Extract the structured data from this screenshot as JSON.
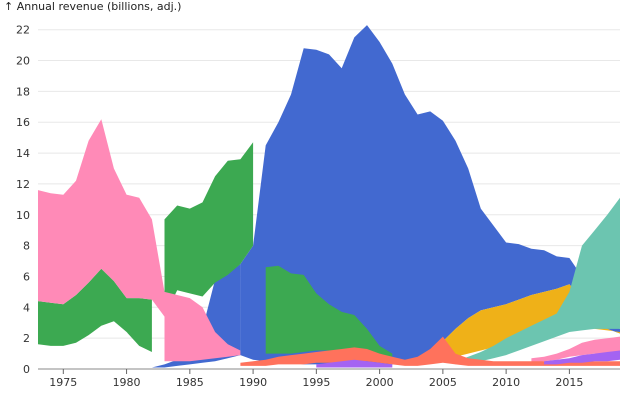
{
  "chart_data": {
    "type": "area",
    "title": "",
    "xlabel": "",
    "ylabel": "↑ Annual revenue (billions, adj.)",
    "xlim": [
      1973,
      2019
    ],
    "ylim": [
      0,
      22.5
    ],
    "grid": "horizontal",
    "x_ticks": [
      1975,
      1980,
      1985,
      1990,
      1995,
      2000,
      2005,
      2010,
      2015
    ],
    "y_ticks": [
      0,
      2,
      4,
      6,
      8,
      10,
      12,
      14,
      16,
      18,
      20,
      22
    ],
    "series": [
      {
        "color": "#4269d0",
        "segments": [
          {
            "x": [
              1982,
              1983,
              1984,
              1985,
              1986,
              1987,
              1988,
              1989
            ],
            "y0": [
              0.1,
              0.1,
              0.2,
              0.3,
              0.4,
              0.5,
              0.7,
              0.9
            ],
            "y1": [
              0.1,
              0.3,
              0.6,
              1.5,
              2.6,
              5.8,
              6.2,
              6.8
            ]
          },
          {
            "x": [
              1989,
              1990,
              1991,
              1992,
              1993,
              1994,
              1995,
              1996,
              1997,
              1998,
              1999,
              2000,
              2001,
              2002,
              2003,
              2004,
              2005,
              2006,
              2007,
              2008,
              2009,
              2010,
              2011,
              2012,
              2013,
              2014,
              2015,
              2016,
              2017,
              2018,
              2019
            ],
            "y0": [
              0.9,
              0.6,
              0.5,
              0.4,
              0.4,
              0.3,
              0.3,
              0.3,
              0.3,
              0.3,
              0.3,
              0.3,
              0.3,
              0.3,
              0.3,
              1.0,
              1.8,
              2.6,
              3.3,
              3.8,
              4.0,
              4.2,
              4.5,
              4.8,
              5.0,
              5.2,
              5.5,
              4.5,
              3.4,
              2.6,
              2.3
            ],
            "y1": [
              6.8,
              8.0,
              14.5,
              16.0,
              17.8,
              20.8,
              20.7,
              20.4,
              19.5,
              21.5,
              22.3,
              21.2,
              19.8,
              17.8,
              16.5,
              16.7,
              16.1,
              14.8,
              13.0,
              10.4,
              9.3,
              8.2,
              8.1,
              7.8,
              7.7,
              7.3,
              7.2,
              6.0,
              4.2,
              3.0,
              2.6
            ]
          }
        ]
      },
      {
        "color": "#efb118",
        "segments": [
          {
            "x": [
              2003,
              2004,
              2005,
              2006,
              2007,
              2008,
              2009,
              2010,
              2011,
              2012,
              2013,
              2014,
              2015,
              2016,
              2017,
              2018,
              2019
            ],
            "y0": [
              0.3,
              0.5,
              0.6,
              0.8,
              1.0,
              1.2,
              1.4,
              1.6,
              1.8,
              2.0,
              2.3,
              2.6,
              3.0,
              2.8,
              2.6,
              2.5,
              2.4
            ],
            "y1": [
              0.4,
              1.0,
              1.8,
              2.6,
              3.3,
              3.8,
              4.0,
              4.2,
              4.5,
              4.8,
              5.0,
              5.2,
              5.5,
              4.5,
              3.4,
              2.6,
              2.3
            ]
          }
        ]
      },
      {
        "color": "#3ca951",
        "segments": [
          {
            "x": [
              1973,
              1974,
              1975,
              1976,
              1977,
              1978,
              1979,
              1980,
              1981,
              1982
            ],
            "y0": [
              1.6,
              1.5,
              1.5,
              1.7,
              2.2,
              2.8,
              3.1,
              2.4,
              1.5,
              1.1
            ],
            "y1": [
              4.4,
              4.3,
              4.2,
              4.8,
              5.6,
              6.5,
              5.7,
              4.6,
              4.6,
              4.5
            ]
          },
          {
            "x": [
              1983,
              1984,
              1985,
              1986,
              1987,
              1988,
              1989,
              1990
            ],
            "y0": [
              3.4,
              5.1,
              4.9,
              4.7,
              5.6,
              6.1,
              6.8,
              8.0
            ],
            "y1": [
              9.7,
              10.6,
              10.4,
              10.8,
              12.5,
              13.5,
              13.6,
              14.7
            ]
          },
          {
            "x": [
              1991,
              1992,
              1993,
              1994,
              1995,
              1996,
              1997,
              1998,
              1999,
              2000,
              2001
            ],
            "y0": [
              1.0,
              1.0,
              1.0,
              1.1,
              1.2,
              1.2,
              1.2,
              1.0,
              0.8,
              0.6,
              0.4
            ],
            "y1": [
              6.6,
              6.7,
              6.2,
              6.1,
              4.9,
              4.2,
              3.7,
              3.5,
              2.6,
              1.5,
              1.0
            ]
          }
        ]
      },
      {
        "color": "#ff8ab7",
        "segments": [
          {
            "x": [
              1973,
              1974,
              1975,
              1976,
              1977,
              1978,
              1979,
              1980,
              1981,
              1982,
              1983
            ],
            "y0": [
              4.4,
              4.3,
              4.2,
              4.8,
              5.6,
              6.5,
              5.7,
              4.6,
              4.6,
              4.5,
              3.4
            ],
            "y1": [
              11.6,
              11.4,
              11.3,
              12.2,
              14.8,
              16.2,
              13.0,
              11.3,
              11.1,
              9.7,
              5.0
            ]
          },
          {
            "x": [
              1983,
              1984,
              1985,
              1986,
              1987,
              1988,
              1989
            ],
            "y0": [
              0.5,
              0.5,
              0.5,
              0.6,
              0.7,
              0.8,
              0.9
            ],
            "y1": [
              5.0,
              4.8,
              4.6,
              4.0,
              2.4,
              1.6,
              1.2
            ]
          },
          {
            "x": [
              2012,
              2013,
              2014,
              2015,
              2016,
              2017,
              2018,
              2019
            ],
            "y0": [
              0.4,
              0.5,
              0.6,
              0.8,
              0.9,
              1.0,
              1.0,
              1.1
            ],
            "y1": [
              0.7,
              0.8,
              1.0,
              1.3,
              1.7,
              1.9,
              2.0,
              2.1
            ]
          }
        ]
      },
      {
        "color": "#6cc5b0",
        "segments": [
          {
            "x": [
              2006,
              2007,
              2008,
              2009,
              2010,
              2011,
              2012,
              2013,
              2014,
              2015,
              2016,
              2017,
              2018,
              2019
            ],
            "y0": [
              0.3,
              0.4,
              0.5,
              0.7,
              0.9,
              1.2,
              1.5,
              1.8,
              2.1,
              2.4,
              2.5,
              2.6,
              2.6,
              2.6
            ],
            "y1": [
              0.5,
              0.8,
              1.1,
              1.5,
              2.0,
              2.4,
              2.8,
              3.2,
              3.6,
              5.0,
              8.0,
              9.0,
              10.0,
              11.1
            ]
          }
        ]
      },
      {
        "color": "#ff725c",
        "segments": [
          {
            "x": [
              1989,
              1990,
              1991,
              1992,
              1993,
              1994,
              1995,
              1996,
              1997,
              1998,
              1999,
              2000,
              2001,
              2002,
              2003,
              2004,
              2005,
              2006,
              2007,
              2008,
              2009,
              2010,
              2011,
              2012,
              2013,
              2014,
              2015,
              2016,
              2017,
              2018,
              2019
            ],
            "y0": [
              0.2,
              0.2,
              0.2,
              0.3,
              0.3,
              0.3,
              0.4,
              0.4,
              0.4,
              0.5,
              0.5,
              0.4,
              0.3,
              0.2,
              0.2,
              0.3,
              0.4,
              0.3,
              0.2,
              0.2,
              0.2,
              0.2,
              0.2,
              0.2,
              0.2,
              0.2,
              0.2,
              0.2,
              0.2,
              0.2,
              0.2
            ],
            "y1": [
              0.4,
              0.5,
              0.6,
              0.8,
              0.9,
              1.0,
              1.1,
              1.2,
              1.3,
              1.4,
              1.3,
              1.0,
              0.8,
              0.6,
              0.8,
              1.3,
              2.1,
              1.0,
              0.7,
              0.6,
              0.5,
              0.5,
              0.5,
              0.5,
              0.5,
              0.5,
              0.5,
              0.5,
              0.5,
              0.5,
              0.5
            ]
          }
        ]
      },
      {
        "color": "#a463f2",
        "segments": [
          {
            "x": [
              1995,
              1996,
              1997,
              1998,
              1999,
              2000,
              2001
            ],
            "y0": [
              0.1,
              0.1,
              0.1,
              0.1,
              0.1,
              0.1,
              0.1
            ],
            "y1": [
              0.3,
              0.4,
              0.5,
              0.6,
              0.5,
              0.4,
              0.3
            ]
          },
          {
            "x": [
              2013,
              2014,
              2015,
              2016,
              2017,
              2018,
              2019
            ],
            "y0": [
              0.3,
              0.3,
              0.4,
              0.4,
              0.5,
              0.5,
              0.6
            ],
            "y1": [
              0.5,
              0.6,
              0.7,
              0.9,
              1.0,
              1.1,
              1.2
            ]
          }
        ]
      }
    ]
  }
}
